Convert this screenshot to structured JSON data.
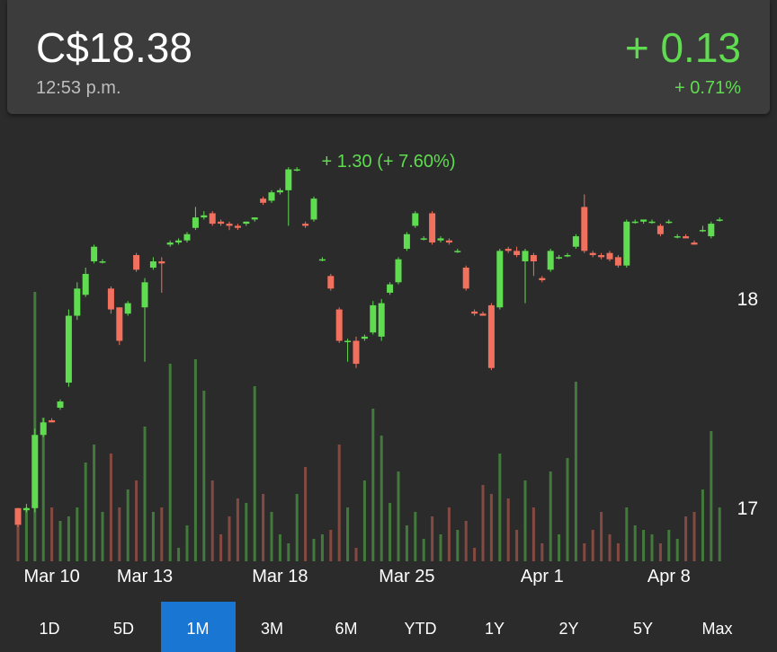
{
  "header": {
    "price": "C$18.38",
    "time": "12:53 p.m.",
    "change": "+ 0.13",
    "change_percent": "+ 0.71%"
  },
  "chart_data": {
    "type": "candlestick",
    "annotation": "+ 1.30 (+ 7.60%)",
    "categories": [
      null,
      null,
      null,
      null,
      "Mar 10",
      null,
      null,
      null,
      null,
      null,
      null,
      null,
      null,
      null,
      null,
      "Mar 13",
      null,
      null,
      null,
      null,
      null,
      null,
      null,
      null,
      null,
      null,
      null,
      null,
      null,
      null,
      null,
      "Mar 18",
      null,
      null,
      null,
      null,
      null,
      null,
      null,
      null,
      null,
      null,
      null,
      null,
      null,
      null,
      "Mar 25",
      null,
      null,
      null,
      null,
      null,
      null,
      null,
      null,
      null,
      null,
      null,
      null,
      null,
      null,
      null,
      "Apr 1",
      null,
      null,
      null,
      null,
      null,
      null,
      null,
      null,
      null,
      null,
      null,
      null,
      null,
      null,
      "Apr 8",
      null,
      null,
      null,
      null,
      null,
      null
    ],
    "open": [
      17.0,
      16.99,
      17.0,
      17.35,
      17.42,
      17.48,
      17.6,
      17.92,
      18.02,
      18.18,
      18.18,
      18.05,
      17.96,
      17.93,
      18.21,
      17.96,
      18.15,
      18.18,
      18.26,
      18.27,
      18.28,
      18.34,
      18.39,
      18.41,
      18.37,
      18.36,
      18.35,
      18.36,
      18.38,
      18.48,
      18.47,
      18.51,
      18.52,
      18.62,
      18.36,
      18.38,
      18.19,
      18.11,
      17.95,
      17.8,
      17.8,
      17.81,
      17.84,
      17.82,
      18.03,
      18.08,
      18.24,
      18.35,
      18.29,
      18.41,
      18.28,
      18.28,
      18.23,
      18.15,
      17.94,
      17.93,
      17.97,
      17.96,
      18.24,
      18.23,
      18.18,
      18.21,
      18.1,
      18.14,
      18.2,
      18.21,
      18.25,
      18.44,
      18.22,
      18.21,
      18.22,
      18.2,
      18.16,
      18.37,
      18.37,
      18.37,
      18.35,
      18.37,
      18.3,
      18.3,
      18.27,
      18.33,
      18.3,
      18.38
    ],
    "high": [
      17.0,
      17.02,
      17.38,
      17.43,
      17.43,
      17.52,
      17.95,
      18.08,
      18.15,
      18.26,
      18.19,
      18.06,
      17.96,
      17.99,
      18.22,
      18.1,
      18.2,
      18.2,
      18.28,
      18.29,
      18.32,
      18.44,
      18.42,
      18.42,
      18.38,
      18.37,
      18.36,
      18.37,
      18.39,
      18.49,
      18.52,
      18.53,
      18.63,
      18.63,
      18.37,
      18.49,
      18.2,
      18.12,
      17.96,
      17.81,
      17.82,
      17.83,
      17.99,
      18.0,
      18.08,
      18.2,
      18.32,
      18.42,
      18.3,
      18.42,
      18.3,
      18.29,
      18.24,
      18.16,
      17.95,
      17.94,
      17.98,
      18.24,
      18.25,
      18.25,
      18.24,
      18.22,
      18.11,
      18.24,
      18.21,
      18.22,
      18.31,
      18.5,
      18.23,
      18.22,
      18.23,
      18.21,
      18.38,
      18.38,
      18.38,
      18.38,
      18.36,
      18.38,
      18.31,
      18.31,
      18.28,
      18.35,
      18.37,
      18.39
    ],
    "low": [
      16.91,
      16.98,
      16.98,
      17.34,
      17.41,
      17.47,
      17.58,
      17.9,
      18.01,
      18.17,
      18.17,
      17.93,
      17.78,
      17.92,
      18.13,
      17.7,
      18.14,
      18.03,
      18.25,
      18.26,
      18.27,
      18.33,
      18.38,
      18.35,
      18.35,
      18.33,
      18.33,
      18.35,
      18.37,
      18.45,
      18.46,
      18.5,
      18.35,
      18.61,
      18.34,
      18.37,
      18.18,
      18.04,
      17.79,
      17.7,
      17.67,
      17.8,
      17.83,
      17.8,
      18.02,
      18.07,
      18.23,
      18.34,
      18.28,
      18.26,
      18.27,
      18.26,
      18.22,
      18.04,
      17.92,
      17.92,
      17.66,
      17.95,
      18.22,
      18.2,
      17.98,
      18.11,
      18.08,
      18.13,
      18.19,
      18.2,
      18.24,
      18.22,
      18.2,
      18.19,
      18.18,
      18.15,
      18.15,
      18.36,
      18.36,
      18.36,
      18.3,
      18.36,
      18.29,
      18.29,
      18.26,
      18.32,
      18.29,
      18.37
    ],
    "close": [
      16.92,
      17.0,
      17.35,
      17.41,
      17.41,
      17.51,
      17.92,
      18.05,
      18.12,
      18.25,
      18.18,
      17.95,
      17.8,
      17.98,
      18.14,
      18.08,
      18.18,
      18.17,
      18.27,
      18.28,
      18.31,
      18.39,
      18.4,
      18.36,
      18.36,
      18.35,
      18.34,
      18.37,
      18.39,
      18.46,
      18.51,
      18.52,
      18.62,
      18.62,
      18.35,
      18.48,
      18.19,
      18.05,
      17.8,
      17.8,
      17.69,
      17.82,
      17.97,
      17.98,
      18.07,
      18.19,
      18.31,
      18.41,
      18.29,
      18.27,
      18.29,
      18.27,
      18.23,
      18.05,
      17.93,
      17.92,
      17.67,
      18.23,
      18.23,
      18.21,
      18.23,
      18.18,
      18.09,
      18.23,
      18.2,
      18.21,
      18.3,
      18.23,
      18.21,
      18.2,
      18.19,
      18.16,
      18.37,
      18.37,
      18.38,
      18.37,
      18.31,
      18.37,
      18.3,
      18.29,
      18.26,
      18.33,
      18.36,
      18.38
    ],
    "volume": [
      40,
      60,
      300,
      160,
      60,
      45,
      50,
      60,
      110,
      130,
      55,
      120,
      60,
      80,
      90,
      150,
      55,
      60,
      220,
      15,
      40,
      225,
      190,
      90,
      30,
      50,
      70,
      65,
      195,
      75,
      55,
      30,
      20,
      75,
      105,
      25,
      30,
      35,
      130,
      60,
      15,
      90,
      170,
      140,
      65,
      100,
      40,
      55,
      25,
      50,
      30,
      60,
      35,
      45,
      15,
      85,
      75,
      120,
      70,
      35,
      90,
      60,
      20,
      100,
      30,
      115,
      200,
      20,
      35,
      55,
      30,
      20,
      60,
      40,
      35,
      30,
      20,
      35,
      25,
      50,
      55,
      80,
      145,
      60
    ],
    "ylim": [
      16.75,
      18.85
    ],
    "yticks": [
      17,
      18
    ],
    "up_color": "#5fdc4f",
    "down_color": "#f2705e"
  },
  "tabs": {
    "items": [
      "1D",
      "5D",
      "1M",
      "3M",
      "6M",
      "YTD",
      "1Y",
      "2Y",
      "5Y",
      "Max"
    ],
    "selected": 2
  }
}
